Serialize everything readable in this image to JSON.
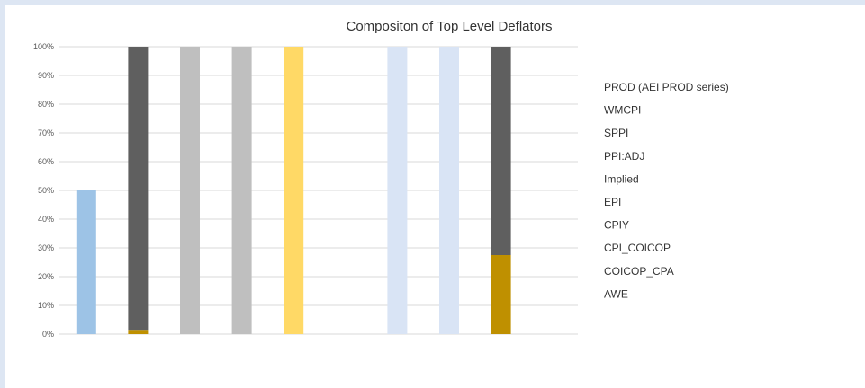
{
  "colors": {
    "prod": "#9dc3e6",
    "wmcpi": "#5f5f5f",
    "sppi": "#bfbfbf",
    "implied": "#ffd966",
    "epi": "#d9e4f5",
    "cpi_coicop": "#bf9000",
    "grid": "#d9d9d9",
    "frame_bg": "#dde6f3"
  },
  "chart_data": {
    "type": "bar",
    "stacked": true,
    "title": "Compositon of Top Level Deflators",
    "xlabel": "",
    "ylabel": "",
    "ylim": [
      0,
      100
    ],
    "y_ticks": [
      "0%",
      "10%",
      "20%",
      "30%",
      "40%",
      "50%",
      "60%",
      "70%",
      "80%",
      "90%",
      "100%"
    ],
    "category_count": 10,
    "grid": true,
    "legend_position": "right",
    "legend": [
      "PROD (AEI PROD series)",
      "WMCPI",
      "SPPI",
      "PPI:ADJ",
      "Implied",
      "EPI",
      "CPIY",
      "CPI_COICOP",
      "COICOP_CPA",
      "AWE"
    ],
    "bars": [
      {
        "segments": [
          {
            "series": "PROD (AEI PROD series)",
            "value": 50,
            "color": "#9dc3e6"
          }
        ]
      },
      {
        "segments": [
          {
            "series": "CPI_COICOP",
            "value": 1.5,
            "color": "#bf9000"
          },
          {
            "series": "WMCPI",
            "value": 98.5,
            "color": "#5f5f5f"
          }
        ]
      },
      {
        "segments": [
          {
            "series": "SPPI",
            "value": 100,
            "color": "#bfbfbf"
          }
        ]
      },
      {
        "segments": [
          {
            "series": "SPPI",
            "value": 100,
            "color": "#bfbfbf"
          }
        ]
      },
      {
        "segments": [
          {
            "series": "Implied",
            "value": 100,
            "color": "#ffd966"
          }
        ]
      },
      {
        "segments": []
      },
      {
        "segments": [
          {
            "series": "EPI",
            "value": 100,
            "color": "#d9e4f5"
          }
        ]
      },
      {
        "segments": [
          {
            "series": "EPI",
            "value": 100,
            "color": "#d9e4f5"
          }
        ]
      },
      {
        "segments": [
          {
            "series": "CPI_COICOP",
            "value": 27.5,
            "color": "#bf9000"
          },
          {
            "series": "WMCPI",
            "value": 72.5,
            "color": "#5f5f5f"
          }
        ]
      },
      {
        "segments": []
      }
    ]
  }
}
